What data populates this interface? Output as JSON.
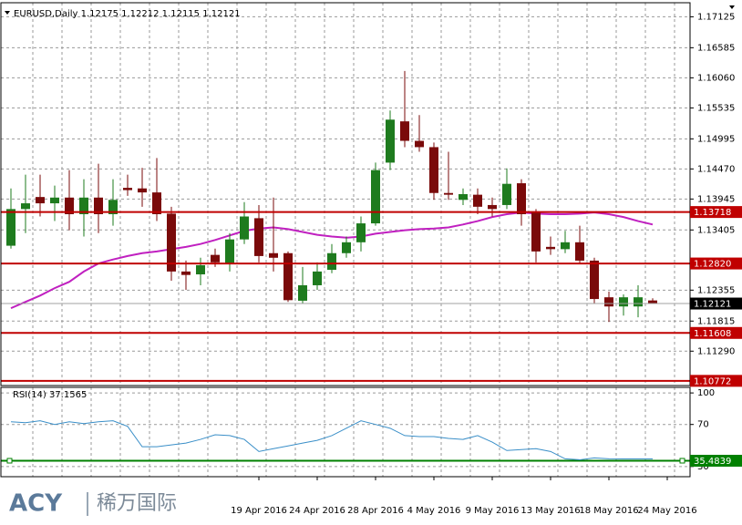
{
  "chart_data": [
    {
      "type": "candlestick",
      "title": "EURUSD,Daily  1.12175 1.12212 1.12115 1.12121",
      "categories": [
        null,
        null,
        null,
        null,
        null,
        null,
        null,
        null,
        null,
        null,
        null,
        null,
        null,
        null,
        null,
        null,
        null,
        "19 Apr 2016",
        null,
        null,
        null,
        "24 Apr 2016",
        null,
        null,
        null,
        "28 Apr 2016",
        null,
        null,
        null,
        "4 May 2016",
        null,
        null,
        null,
        "9 May 2016",
        null,
        null,
        null,
        "13 May 2016",
        null,
        null,
        null,
        "18 May 2016",
        null,
        null,
        null,
        "24 May 2016"
      ],
      "open": [
        1.1313,
        1.1377,
        1.1398,
        1.1387,
        1.1397,
        1.1368,
        1.1397,
        1.1368,
        1.1414,
        1.1413,
        1.1406,
        1.1369,
        1.1268,
        1.1263,
        1.1297,
        1.1281,
        1.1324,
        1.1361,
        1.13,
        1.13,
        1.1217,
        1.1244,
        1.1271,
        1.13,
        1.1319,
        1.1352,
        1.1458,
        1.153,
        1.1496,
        1.1485,
        1.1405,
        1.1393,
        1.1402,
        1.1384,
        1.1384,
        1.1422,
        1.1371,
        1.1311,
        1.1307,
        1.1319,
        1.1287,
        1.1223,
        1.1207,
        1.1207,
        1.12175,
        null
      ],
      "high": [
        1.1413,
        1.1437,
        1.1437,
        1.1418,
        1.1445,
        1.1429,
        1.1456,
        1.1429,
        1.1437,
        1.1449,
        1.1466,
        1.1381,
        1.1287,
        1.1292,
        1.1308,
        1.1335,
        1.1389,
        1.1384,
        1.1397,
        1.1303,
        1.1276,
        1.1284,
        1.1316,
        1.1329,
        1.1364,
        1.1458,
        1.1549,
        1.1618,
        1.1541,
        1.1493,
        1.1477,
        1.1413,
        1.1413,
        1.1397,
        1.1448,
        1.1429,
        1.1377,
        1.1329,
        1.1339,
        1.1348,
        1.1292,
        1.1233,
        1.1228,
        1.1244,
        1.12212,
        null
      ],
      "low": [
        1.1308,
        1.1335,
        1.1364,
        1.1356,
        1.134,
        1.1329,
        1.1335,
        1.1348,
        1.14,
        1.1381,
        1.1356,
        1.1252,
        1.1236,
        1.1244,
        1.1276,
        1.1268,
        1.1316,
        1.1284,
        1.1268,
        1.1215,
        1.1212,
        1.1236,
        1.1265,
        1.1292,
        1.1303,
        1.1348,
        1.1445,
        1.1485,
        1.1477,
        1.1393,
        1.1393,
        1.1384,
        1.1368,
        1.1364,
        1.1377,
        1.1348,
        1.1284,
        1.1297,
        1.13,
        1.1281,
        1.1212,
        1.118,
        1.1191,
        1.1188,
        1.12115,
        null
      ],
      "close": [
        1.1377,
        1.1387,
        1.1387,
        1.1397,
        1.1368,
        1.1397,
        1.1368,
        1.1393,
        1.141,
        1.1406,
        1.1368,
        1.1268,
        1.1262,
        1.1279,
        1.1284,
        1.1324,
        1.1364,
        1.1295,
        1.1292,
        1.1218,
        1.1244,
        1.1268,
        1.13,
        1.1319,
        1.1352,
        1.1445,
        1.1533,
        1.1496,
        1.1485,
        1.1405,
        1.1402,
        1.1403,
        1.1381,
        1.1377,
        1.1421,
        1.1368,
        1.1303,
        1.1307,
        1.1319,
        1.1287,
        1.122,
        1.1207,
        1.1223,
        1.1223,
        1.12121,
        null
      ],
      "up_color": "#1e7b1e",
      "down_color": "#7a0a0a",
      "ma": {
        "color": "#c020c0",
        "values": [
          1.1204,
          1.1215,
          1.1226,
          1.1239,
          1.125,
          1.1268,
          1.1282,
          1.1289,
          1.1295,
          1.13,
          1.1303,
          1.1307,
          1.1311,
          1.1316,
          1.1323,
          1.1331,
          1.1339,
          1.1343,
          1.1345,
          1.1342,
          1.1337,
          1.1332,
          1.1329,
          1.1327,
          1.1329,
          1.1334,
          1.1337,
          1.134,
          1.1342,
          1.1343,
          1.1345,
          1.135,
          1.1356,
          1.1363,
          1.1368,
          1.1371,
          1.1369,
          1.1368,
          1.1368,
          1.1369,
          1.1371,
          1.1368,
          1.1363,
          1.1356,
          1.135,
          null
        ]
      },
      "ylim": [
        1.1069,
        1.1737
      ],
      "yticks": [
        1.17125,
        1.16585,
        {
          "value": 1.1606,
          "label": "1.16060"
        },
        1.15535,
        1.14995,
        {
          "value": 1.1447,
          "label": "1.14470"
        },
        1.13945,
        1.13405,
        1.12355,
        1.11815,
        {
          "value": 1.1129,
          "label": "1.11290"
        }
      ],
      "grid": true,
      "levels": [
        {
          "value": 1.13718,
          "color": "#c00000"
        },
        {
          "value": 1.1282,
          "label": "1.12820",
          "color": "#c00000"
        },
        {
          "value": 1.11608,
          "color": "#c00000"
        },
        {
          "value": 1.10772,
          "color": "#c00000"
        }
      ],
      "last_price": {
        "value": 1.12121,
        "color": "#000000"
      }
    },
    {
      "type": "line",
      "title": "RSI(14) 37.1565",
      "values": [
        72.6,
        71.7,
        73.5,
        70.0,
        72.6,
        70.8,
        72.6,
        73.5,
        68.2,
        48.8,
        48.8,
        50.5,
        52.3,
        55.8,
        60.2,
        59.4,
        55.8,
        44.3,
        47.0,
        49.6,
        52.3,
        54.9,
        59.4,
        66.4,
        73.5,
        70.0,
        66.4,
        59.4,
        58.5,
        58.5,
        56.7,
        55.8,
        59.4,
        53.2,
        45.2,
        46.1,
        47.0,
        44.3,
        37.3,
        36.4,
        38.2,
        37.3,
        37.2,
        37.2,
        37.2,
        null
      ],
      "color": "#3a8fc8",
      "ylim": [
        20.3,
        105.3
      ],
      "yticks": [
        100,
        70,
        30
      ],
      "grid": true,
      "level": {
        "value": 35.4839,
        "color": "#008000"
      }
    }
  ],
  "watermark": {
    "brand": "ACY",
    "text": "稀万国际"
  }
}
